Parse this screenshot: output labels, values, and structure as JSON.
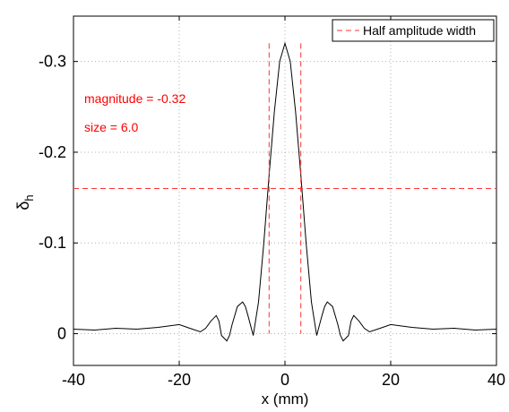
{
  "chart_data": {
    "type": "line",
    "xlabel": "x (mm)",
    "ylabel_main": "δ",
    "ylabel_sub": "h",
    "xlim": [
      -40,
      40
    ],
    "ylim": [
      0.035,
      -0.35
    ],
    "y_axis_reversed": true,
    "grid": true,
    "x_ticks": [
      -40,
      -20,
      0,
      20,
      40
    ],
    "x_tick_labels": [
      "-40",
      "-20",
      "0",
      "20",
      "40"
    ],
    "y_ticks": [
      0,
      -0.1,
      -0.2,
      -0.3
    ],
    "y_tick_labels": [
      "0",
      "-0.1",
      "-0.2",
      "-0.3"
    ],
    "series": [
      {
        "color": "#000000",
        "x": [
          -40,
          -36,
          -32,
          -28,
          -24,
          -20,
          -18,
          -16,
          -15,
          -14,
          -13,
          -12.5,
          -12,
          -11,
          -10.5,
          -10,
          -9,
          -8,
          -7.5,
          -7,
          -6,
          -5,
          -4,
          -3,
          -2,
          -1,
          0,
          1,
          2,
          3,
          4,
          5,
          6,
          7,
          7.5,
          8,
          9,
          10,
          10.5,
          11,
          12,
          12.5,
          13,
          14,
          15,
          16,
          18,
          20,
          24,
          28,
          32,
          36,
          40
        ],
        "y": [
          -0.005,
          -0.004,
          -0.006,
          -0.005,
          -0.007,
          -0.01,
          -0.006,
          -0.002,
          -0.006,
          -0.014,
          -0.02,
          -0.014,
          0.002,
          0.008,
          0.002,
          -0.01,
          -0.03,
          -0.035,
          -0.03,
          -0.02,
          0.002,
          -0.035,
          -0.1,
          -0.175,
          -0.245,
          -0.3,
          -0.32,
          -0.3,
          -0.245,
          -0.175,
          -0.1,
          -0.035,
          0.002,
          -0.02,
          -0.03,
          -0.035,
          -0.03,
          -0.01,
          0.002,
          0.008,
          0.002,
          -0.014,
          -0.02,
          -0.014,
          -0.006,
          -0.002,
          -0.006,
          -0.01,
          -0.007,
          -0.005,
          -0.006,
          -0.004,
          -0.005
        ]
      }
    ],
    "half_amplitude": {
      "legend_label": "Half amplitude width",
      "color": "#ff3333",
      "y": -0.16,
      "x_left": -3.0,
      "x_right": 3.0,
      "v_y_top": -0.32,
      "v_y_bottom": 0
    },
    "annotations": [
      {
        "text": "magnitude = -0.32",
        "color": "#ff0000"
      },
      {
        "text": "size = 6.0",
        "color": "#ff0000"
      }
    ],
    "legend_position": "top-right"
  }
}
